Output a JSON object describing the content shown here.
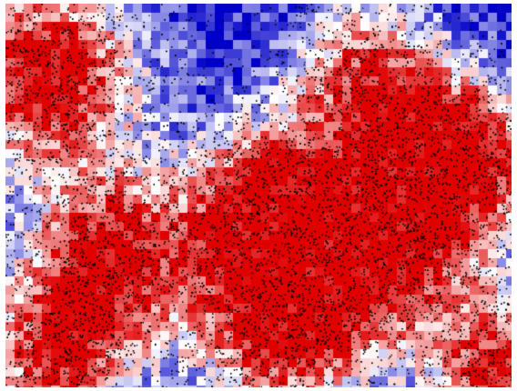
{
  "image": {
    "kind": "spatial-heatmap-with-point-overlay",
    "palette": {
      "high": "#e00000",
      "mid": "#ffffff",
      "low": "#0000c8",
      "points": "#000000",
      "background": "#ffffff"
    },
    "hotspots": [
      {
        "name": "upper-left",
        "intensity": 1.0
      },
      {
        "name": "upper-center-right",
        "intensity": 0.8
      },
      {
        "name": "right-middle",
        "intensity": 0.9
      },
      {
        "name": "center",
        "intensity": 1.0
      },
      {
        "name": "center-right",
        "intensity": 1.0
      },
      {
        "name": "left-lower",
        "intensity": 0.95
      },
      {
        "name": "bottom-center",
        "intensity": 1.0
      },
      {
        "name": "bottom-right-corner",
        "intensity": 0.9
      },
      {
        "name": "bottom-left",
        "intensity": 0.8
      }
    ]
  }
}
